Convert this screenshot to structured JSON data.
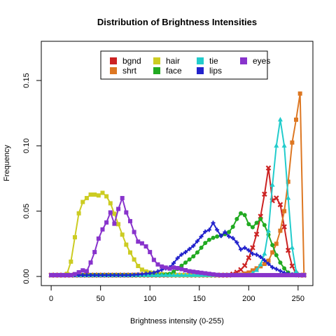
{
  "chart_data": {
    "type": "line",
    "title": "Distribution of Brightness Intensities",
    "xlabel": "Brightness  intensity (0-255)",
    "ylabel": "Frequency",
    "xlim": [
      -10,
      265
    ],
    "ylim": [
      -0.007,
      0.18
    ],
    "xticks": [
      0,
      50,
      100,
      150,
      200,
      250
    ],
    "yticks": [
      0.0,
      0.05,
      0.1,
      0.15
    ],
    "ytick_labels": [
      "0.00",
      "0.05",
      "0.10",
      "0.15"
    ],
    "grid": false,
    "legend_position": "top-center",
    "legend_columns": 4,
    "series": [
      {
        "name": "bgnd",
        "color": "#cc2222",
        "marker": "x",
        "points": [
          [
            0,
            0.001
          ],
          [
            180,
            0.001
          ],
          [
            185,
            0.002
          ],
          [
            190,
            0.004
          ],
          [
            195,
            0.007
          ],
          [
            198,
            0.011
          ],
          [
            201,
            0.016
          ],
          [
            204,
            0.022
          ],
          [
            207,
            0.03
          ],
          [
            210,
            0.037
          ],
          [
            212,
            0.046
          ],
          [
            214,
            0.055
          ],
          [
            216,
            0.063
          ],
          [
            218,
            0.075
          ],
          [
            220,
            0.083
          ],
          [
            222,
            0.07
          ],
          [
            224,
            0.058
          ],
          [
            226,
            0.068
          ],
          [
            228,
            0.06
          ],
          [
            230,
            0.063
          ],
          [
            232,
            0.055
          ],
          [
            234,
            0.045
          ],
          [
            236,
            0.038
          ],
          [
            240,
            0.02
          ],
          [
            244,
            0.008
          ],
          [
            248,
            0.002
          ],
          [
            252,
            0.001
          ],
          [
            256,
            0.001
          ]
        ]
      },
      {
        "name": "shrt",
        "color": "#dd7722",
        "marker": "square",
        "points": [
          [
            0,
            0.001
          ],
          [
            190,
            0.001
          ],
          [
            200,
            0.003
          ],
          [
            205,
            0.005
          ],
          [
            210,
            0.007
          ],
          [
            215,
            0.009
          ],
          [
            220,
            0.012
          ],
          [
            225,
            0.02
          ],
          [
            228,
            0.025
          ],
          [
            232,
            0.035
          ],
          [
            236,
            0.05
          ],
          [
            239,
            0.065
          ],
          [
            241,
            0.08
          ],
          [
            243,
            0.095
          ],
          [
            245,
            0.11
          ],
          [
            247,
            0.122
          ],
          [
            249,
            0.118
          ],
          [
            251,
            0.135
          ],
          [
            253,
            0.145
          ],
          [
            255,
            0.06
          ],
          [
            256,
            0.001
          ]
        ]
      },
      {
        "name": "hair",
        "color": "#cccc22",
        "marker": "square",
        "points": [
          [
            0,
            0.001
          ],
          [
            15,
            0.001
          ],
          [
            18,
            0.004
          ],
          [
            21,
            0.015
          ],
          [
            24,
            0.03
          ],
          [
            27,
            0.045
          ],
          [
            30,
            0.055
          ],
          [
            33,
            0.058
          ],
          [
            36,
            0.06
          ],
          [
            39,
            0.062
          ],
          [
            42,
            0.064
          ],
          [
            45,
            0.062
          ],
          [
            48,
            0.062
          ],
          [
            51,
            0.064
          ],
          [
            54,
            0.064
          ],
          [
            57,
            0.06
          ],
          [
            60,
            0.056
          ],
          [
            63,
            0.05
          ],
          [
            66,
            0.044
          ],
          [
            69,
            0.038
          ],
          [
            72,
            0.032
          ],
          [
            75,
            0.026
          ],
          [
            78,
            0.021
          ],
          [
            81,
            0.017
          ],
          [
            84,
            0.013
          ],
          [
            87,
            0.009
          ],
          [
            90,
            0.006
          ],
          [
            95,
            0.004
          ],
          [
            100,
            0.003
          ],
          [
            110,
            0.002
          ],
          [
            120,
            0.001
          ],
          [
            256,
            0.001
          ]
        ]
      },
      {
        "name": "face",
        "color": "#22aa22",
        "marker": "circle",
        "points": [
          [
            0,
            0.001
          ],
          [
            110,
            0.001
          ],
          [
            120,
            0.002
          ],
          [
            125,
            0.004
          ],
          [
            130,
            0.007
          ],
          [
            135,
            0.01
          ],
          [
            140,
            0.013
          ],
          [
            145,
            0.016
          ],
          [
            150,
            0.02
          ],
          [
            155,
            0.025
          ],
          [
            160,
            0.028
          ],
          [
            165,
            0.03
          ],
          [
            170,
            0.031
          ],
          [
            175,
            0.032
          ],
          [
            180,
            0.034
          ],
          [
            185,
            0.039
          ],
          [
            188,
            0.044
          ],
          [
            191,
            0.048
          ],
          [
            194,
            0.049
          ],
          [
            197,
            0.046
          ],
          [
            200,
            0.04
          ],
          [
            203,
            0.037
          ],
          [
            206,
            0.039
          ],
          [
            209,
            0.042
          ],
          [
            212,
            0.044
          ],
          [
            215,
            0.041
          ],
          [
            218,
            0.036
          ],
          [
            221,
            0.03
          ],
          [
            224,
            0.024
          ],
          [
            227,
            0.018
          ],
          [
            230,
            0.013
          ],
          [
            235,
            0.007
          ],
          [
            240,
            0.003
          ],
          [
            245,
            0.001
          ],
          [
            256,
            0.001
          ]
        ]
      },
      {
        "name": "tie",
        "color": "#22cccc",
        "marker": "triangle",
        "points": [
          [
            0,
            0.001
          ],
          [
            200,
            0.001
          ],
          [
            205,
            0.003
          ],
          [
            210,
            0.006
          ],
          [
            214,
            0.012
          ],
          [
            217,
            0.02
          ],
          [
            220,
            0.035
          ],
          [
            222,
            0.05
          ],
          [
            224,
            0.07
          ],
          [
            226,
            0.09
          ],
          [
            228,
            0.1
          ],
          [
            230,
            0.112
          ],
          [
            232,
            0.12
          ],
          [
            234,
            0.115
          ],
          [
            236,
            0.1
          ],
          [
            238,
            0.08
          ],
          [
            240,
            0.06
          ],
          [
            242,
            0.04
          ],
          [
            244,
            0.022
          ],
          [
            246,
            0.01
          ],
          [
            248,
            0.004
          ],
          [
            250,
            0.001
          ],
          [
            256,
            0.001
          ]
        ]
      },
      {
        "name": "lips",
        "color": "#2222cc",
        "marker": "plus",
        "points": [
          [
            0,
            0.001
          ],
          [
            80,
            0.001
          ],
          [
            95,
            0.002
          ],
          [
            105,
            0.003
          ],
          [
            115,
            0.006
          ],
          [
            120,
            0.007
          ],
          [
            125,
            0.011
          ],
          [
            130,
            0.016
          ],
          [
            135,
            0.018
          ],
          [
            140,
            0.021
          ],
          [
            145,
            0.024
          ],
          [
            150,
            0.029
          ],
          [
            155,
            0.033
          ],
          [
            158,
            0.037
          ],
          [
            161,
            0.035
          ],
          [
            164,
            0.041
          ],
          [
            167,
            0.037
          ],
          [
            170,
            0.033
          ],
          [
            173,
            0.03
          ],
          [
            176,
            0.034
          ],
          [
            179,
            0.032
          ],
          [
            182,
            0.028
          ],
          [
            185,
            0.03
          ],
          [
            188,
            0.026
          ],
          [
            191,
            0.022
          ],
          [
            194,
            0.018
          ],
          [
            197,
            0.024
          ],
          [
            200,
            0.02
          ],
          [
            203,
            0.018
          ],
          [
            206,
            0.016
          ],
          [
            209,
            0.017
          ],
          [
            212,
            0.015
          ],
          [
            215,
            0.013
          ],
          [
            218,
            0.011
          ],
          [
            221,
            0.009
          ],
          [
            224,
            0.007
          ],
          [
            227,
            0.006
          ],
          [
            230,
            0.005
          ],
          [
            235,
            0.003
          ],
          [
            240,
            0.002
          ],
          [
            248,
            0.001
          ],
          [
            256,
            0.001
          ]
        ]
      },
      {
        "name": "eyes",
        "color": "#8833cc",
        "marker": "square",
        "points": [
          [
            0,
            0.001
          ],
          [
            20,
            0.001
          ],
          [
            25,
            0.002
          ],
          [
            30,
            0.004
          ],
          [
            33,
            0.005
          ],
          [
            36,
            0.004
          ],
          [
            39,
            0.009
          ],
          [
            42,
            0.014
          ],
          [
            45,
            0.021
          ],
          [
            48,
            0.029
          ],
          [
            51,
            0.034
          ],
          [
            54,
            0.04
          ],
          [
            57,
            0.042
          ],
          [
            60,
            0.049
          ],
          [
            63,
            0.038
          ],
          [
            66,
            0.045
          ],
          [
            69,
            0.055
          ],
          [
            72,
            0.06
          ],
          [
            75,
            0.05
          ],
          [
            78,
            0.047
          ],
          [
            81,
            0.04
          ],
          [
            84,
            0.034
          ],
          [
            87,
            0.027
          ],
          [
            90,
            0.026
          ],
          [
            93,
            0.025
          ],
          [
            96,
            0.023
          ],
          [
            99,
            0.02
          ],
          [
            102,
            0.016
          ],
          [
            105,
            0.011
          ],
          [
            110,
            0.008
          ],
          [
            115,
            0.007
          ],
          [
            120,
            0.006
          ],
          [
            125,
            0.007
          ],
          [
            130,
            0.006
          ],
          [
            135,
            0.005
          ],
          [
            140,
            0.004
          ],
          [
            150,
            0.003
          ],
          [
            160,
            0.002
          ],
          [
            170,
            0.001
          ],
          [
            256,
            0.001
          ]
        ]
      }
    ]
  }
}
